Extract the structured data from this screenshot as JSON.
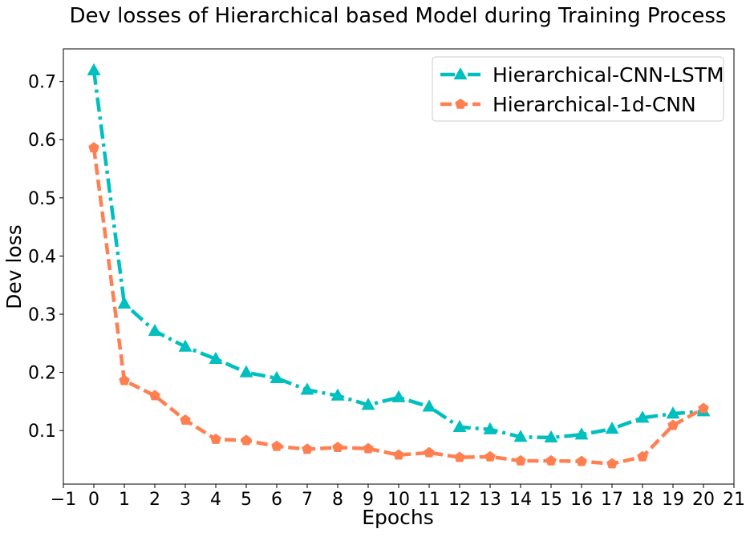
{
  "chart_data": {
    "type": "line",
    "title": "Dev losses of Hierarchical based Model during Training Process",
    "xlabel": "Epochs",
    "ylabel": "Dev loss",
    "xlim": [
      -1,
      21
    ],
    "ylim": [
      0.008,
      0.756
    ],
    "xticks": [
      "−1",
      "0",
      "1",
      "2",
      "3",
      "4",
      "5",
      "6",
      "7",
      "8",
      "9",
      "10",
      "11",
      "12",
      "13",
      "14",
      "15",
      "16",
      "17",
      "18",
      "19",
      "20",
      "21"
    ],
    "yticks": [
      "0.1",
      "0.2",
      "0.3",
      "0.4",
      "0.5",
      "0.6",
      "0.7"
    ],
    "grid": false,
    "legend_position": "top-right",
    "x": [
      0,
      1,
      2,
      3,
      4,
      5,
      6,
      7,
      8,
      9,
      10,
      11,
      12,
      13,
      14,
      15,
      16,
      17,
      18,
      19,
      20
    ],
    "series": [
      {
        "name": "Hierarchical-CNN-LSTM",
        "color": "#00bfbf",
        "marker": "triangle",
        "line_style": "dash-dot",
        "values": [
          0.719,
          0.318,
          0.271,
          0.244,
          0.223,
          0.2,
          0.19,
          0.17,
          0.16,
          0.144,
          0.157,
          0.141,
          0.106,
          0.102,
          0.089,
          0.088,
          0.093,
          0.103,
          0.122,
          0.129,
          0.133
        ]
      },
      {
        "name": "Hierarchical-1d-CNN",
        "color": "#ff7f50",
        "marker": "pentagon",
        "line_style": "dashed",
        "values": [
          0.586,
          0.186,
          0.16,
          0.118,
          0.085,
          0.083,
          0.073,
          0.068,
          0.071,
          0.069,
          0.058,
          0.062,
          0.054,
          0.055,
          0.048,
          0.048,
          0.047,
          0.043,
          0.055,
          0.109,
          0.138
        ]
      }
    ]
  }
}
